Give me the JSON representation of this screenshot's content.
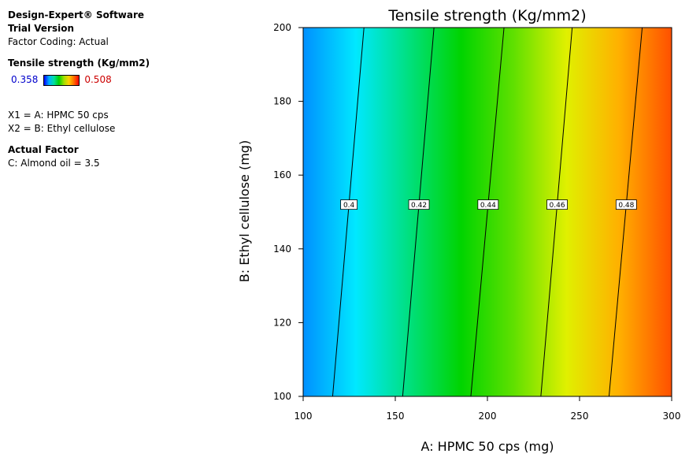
{
  "legend": {
    "software": "Design-Expert® Software",
    "version": "Trial Version",
    "coding": "Factor Coding: Actual",
    "response": "Tensile strength (Kg/mm2)",
    "scale_min": "0.358",
    "scale_max": "0.508",
    "x1": "X1 = A: HPMC 50 cps",
    "x2": "X2 = B: Ethyl cellulose",
    "actual_factor_title": "Actual Factor",
    "actual_factor": "C: Almond oil = 3.5"
  },
  "chart_data": {
    "type": "contour",
    "title": "Tensile strength (Kg/mm2)",
    "xlabel": "A: HPMC 50 cps (mg)",
    "ylabel": "B: Ethyl cellulose  (mg)",
    "xlim": [
      100,
      300
    ],
    "ylim": [
      100,
      200
    ],
    "xticks": [
      100,
      150,
      200,
      250,
      300
    ],
    "yticks": [
      100,
      120,
      140,
      160,
      180,
      200
    ],
    "color_range": [
      0.358,
      0.508
    ],
    "colormap": [
      "#0090ff",
      "#00e8ff",
      "#00e080",
      "#00d400",
      "#60e000",
      "#e0f000",
      "#ffb000",
      "#ff5000"
    ],
    "contours": [
      {
        "level": "0.4",
        "x_at_ymin": 116,
        "x_at_ymax": 133
      },
      {
        "level": "0.42",
        "x_at_ymin": 154,
        "x_at_ymax": 171
      },
      {
        "level": "0.44",
        "x_at_ymin": 191,
        "x_at_ymax": 209
      },
      {
        "level": "0.46",
        "x_at_ymin": 229,
        "x_at_ymax": 246
      },
      {
        "level": "0.48",
        "x_at_ymin": 266,
        "x_at_ymax": 284
      }
    ],
    "label_y": 152
  }
}
